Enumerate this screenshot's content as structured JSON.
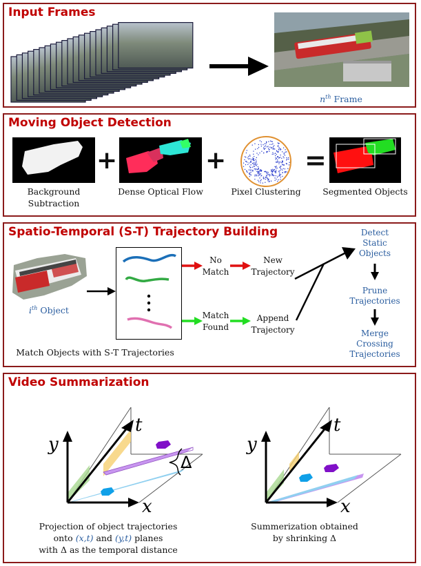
{
  "panels": {
    "input": {
      "title": "Input Frames",
      "frame_label_sup": "n",
      "frame_label_th": "th",
      "frame_label": "Frame"
    },
    "detection": {
      "title": "Moving Object Detection",
      "plus": "+",
      "equals": "=",
      "labels": {
        "background": "Background\nSubtraction",
        "optical_flow": "Dense Optical Flow",
        "clustering": "Pixel Clustering",
        "segmented": "Segmented Objects"
      }
    },
    "trajectory": {
      "title": "Spatio-Temporal (S-T) Trajectory Building",
      "object_label_sup": "i",
      "object_label_th": "th",
      "object_label": "Object",
      "match_caption": "Match Objects with S-T Trajectories",
      "no_match": "No\nMatch",
      "new_trajectory": "New\nTrajectory",
      "match_found": "Match\nFound",
      "append_trajectory": "Append\nTrajectory",
      "steps": [
        "Detect\nStatic\nObjects",
        "Prune\nTrajectories",
        "Merge\nCrossing\nTrajectories"
      ]
    },
    "summarization": {
      "title": "Video Summarization",
      "axis_y": "y",
      "axis_t": "t",
      "axis_x": "x",
      "delta": "Δ",
      "caption_left": {
        "line1": "Projection of object trajectories",
        "line2_pre": "onto ",
        "line2_xt": "(x,t)",
        "line2_mid": " and ",
        "line2_yt": "(y,t)",
        "line2_post": " planes",
        "line3": "with Δ as the temporal distance"
      },
      "caption_right": {
        "line1": "Summerization obtained",
        "line2": "by shrinking Δ"
      }
    }
  },
  "colors": {
    "border": "#8b1a1a",
    "title": "#c00000",
    "label_blue": "#2a5d9f",
    "arrow_red": "#e01010",
    "arrow_green": "#22dd22"
  }
}
